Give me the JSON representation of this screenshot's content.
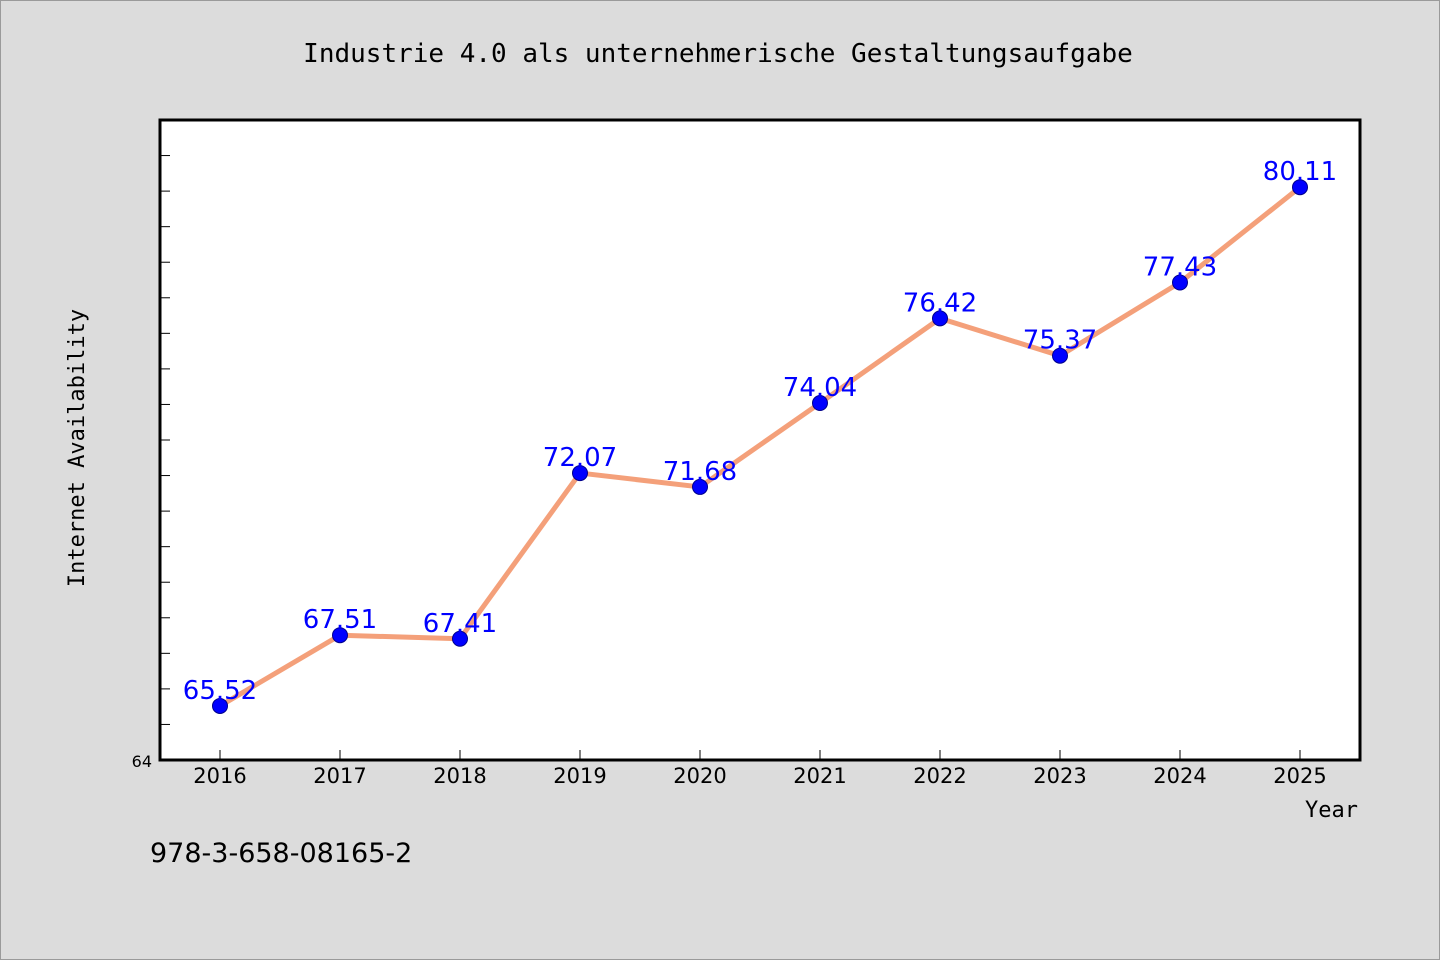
{
  "colors": {
    "background": "#dcdcdc",
    "plot_background": "#ffffff",
    "line": "#f4a07a",
    "marker": "#0000ff",
    "label": "#0000ff"
  },
  "footer": {
    "isbn": "978-3-658-08165-2"
  },
  "chart_data": {
    "type": "line",
    "title": "Industrie 4.0 als unternehmerische Gestaltungsaufgabe",
    "xlabel": "Year",
    "ylabel": "Internet Availability",
    "x": [
      "2016",
      "2017",
      "2018",
      "2019",
      "2020",
      "2021",
      "2022",
      "2023",
      "2024",
      "2025"
    ],
    "series": [
      {
        "values": [
          65.52,
          67.51,
          67.41,
          72.07,
          71.68,
          74.04,
          76.42,
          75.37,
          77.43,
          80.11
        ],
        "value_labels": [
          "65.52",
          "67.51",
          "67.41",
          "72.07",
          "71.68",
          "74.04",
          "76.42",
          "75.37",
          "77.43",
          "80.11"
        ]
      }
    ],
    "ylim": [
      64,
      82
    ],
    "y_tick_labels": [
      "64"
    ],
    "grid": false,
    "legend": "none"
  }
}
